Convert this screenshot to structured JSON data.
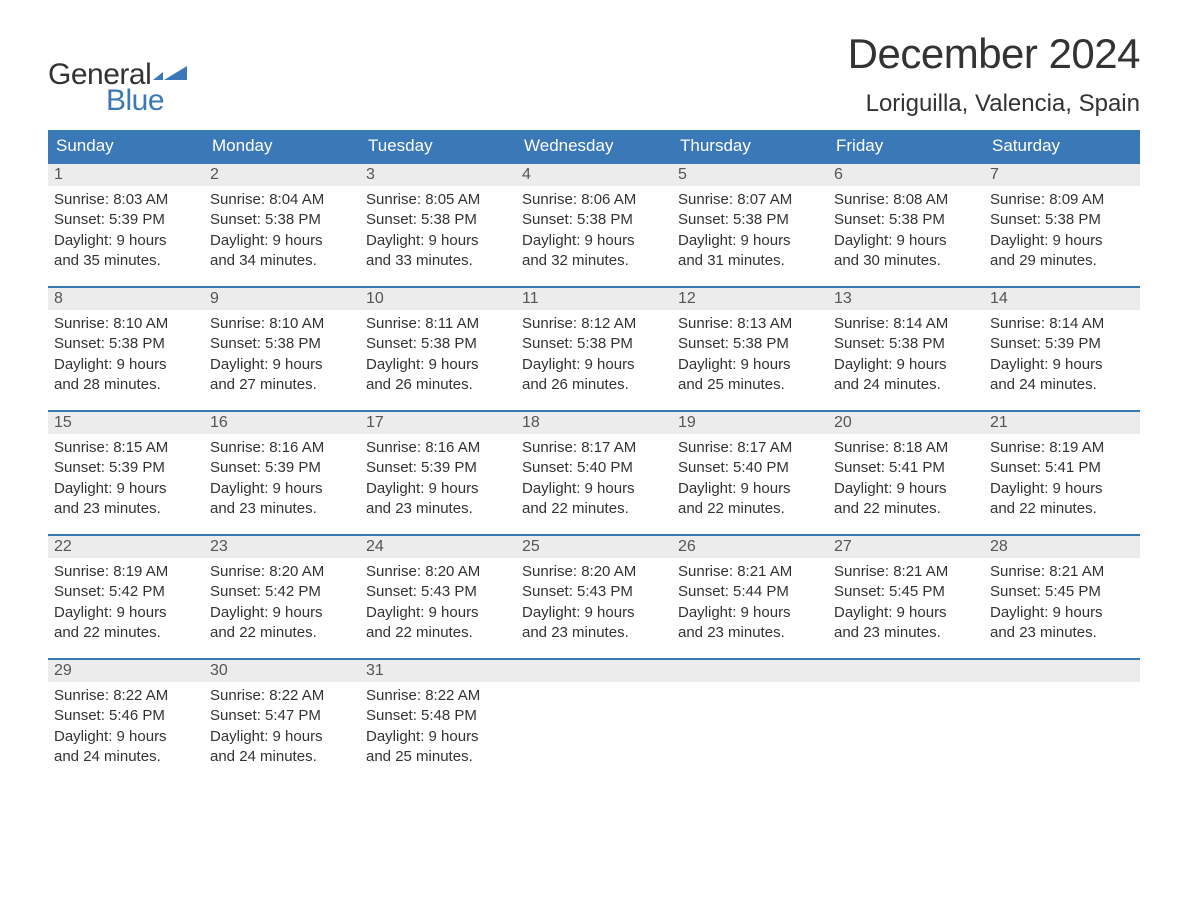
{
  "logo": {
    "text_general": "General",
    "text_blue": "Blue",
    "flag_color": "#3a78b7"
  },
  "title": {
    "month": "December 2024",
    "location": "Loriguilla, Valencia, Spain"
  },
  "colors": {
    "header_bg": "#3a78b7",
    "header_text": "#ffffff",
    "daynum_bg": "#ececec",
    "week_border": "#3a78b7",
    "body_text": "#333333",
    "brand_blue": "#3a78b7"
  },
  "typography": {
    "month_title_fontsize": 42,
    "location_fontsize": 24,
    "day_header_fontsize": 17,
    "daynum_fontsize": 16,
    "cell_fontsize": 15,
    "logo_fontsize": 30
  },
  "day_names": [
    "Sunday",
    "Monday",
    "Tuesday",
    "Wednesday",
    "Thursday",
    "Friday",
    "Saturday"
  ],
  "weeks": [
    [
      {
        "n": "1",
        "sunrise": "Sunrise: 8:03 AM",
        "sunset": "Sunset: 5:39 PM",
        "d1": "Daylight: 9 hours",
        "d2": "and 35 minutes."
      },
      {
        "n": "2",
        "sunrise": "Sunrise: 8:04 AM",
        "sunset": "Sunset: 5:38 PM",
        "d1": "Daylight: 9 hours",
        "d2": "and 34 minutes."
      },
      {
        "n": "3",
        "sunrise": "Sunrise: 8:05 AM",
        "sunset": "Sunset: 5:38 PM",
        "d1": "Daylight: 9 hours",
        "d2": "and 33 minutes."
      },
      {
        "n": "4",
        "sunrise": "Sunrise: 8:06 AM",
        "sunset": "Sunset: 5:38 PM",
        "d1": "Daylight: 9 hours",
        "d2": "and 32 minutes."
      },
      {
        "n": "5",
        "sunrise": "Sunrise: 8:07 AM",
        "sunset": "Sunset: 5:38 PM",
        "d1": "Daylight: 9 hours",
        "d2": "and 31 minutes."
      },
      {
        "n": "6",
        "sunrise": "Sunrise: 8:08 AM",
        "sunset": "Sunset: 5:38 PM",
        "d1": "Daylight: 9 hours",
        "d2": "and 30 minutes."
      },
      {
        "n": "7",
        "sunrise": "Sunrise: 8:09 AM",
        "sunset": "Sunset: 5:38 PM",
        "d1": "Daylight: 9 hours",
        "d2": "and 29 minutes."
      }
    ],
    [
      {
        "n": "8",
        "sunrise": "Sunrise: 8:10 AM",
        "sunset": "Sunset: 5:38 PM",
        "d1": "Daylight: 9 hours",
        "d2": "and 28 minutes."
      },
      {
        "n": "9",
        "sunrise": "Sunrise: 8:10 AM",
        "sunset": "Sunset: 5:38 PM",
        "d1": "Daylight: 9 hours",
        "d2": "and 27 minutes."
      },
      {
        "n": "10",
        "sunrise": "Sunrise: 8:11 AM",
        "sunset": "Sunset: 5:38 PM",
        "d1": "Daylight: 9 hours",
        "d2": "and 26 minutes."
      },
      {
        "n": "11",
        "sunrise": "Sunrise: 8:12 AM",
        "sunset": "Sunset: 5:38 PM",
        "d1": "Daylight: 9 hours",
        "d2": "and 26 minutes."
      },
      {
        "n": "12",
        "sunrise": "Sunrise: 8:13 AM",
        "sunset": "Sunset: 5:38 PM",
        "d1": "Daylight: 9 hours",
        "d2": "and 25 minutes."
      },
      {
        "n": "13",
        "sunrise": "Sunrise: 8:14 AM",
        "sunset": "Sunset: 5:38 PM",
        "d1": "Daylight: 9 hours",
        "d2": "and 24 minutes."
      },
      {
        "n": "14",
        "sunrise": "Sunrise: 8:14 AM",
        "sunset": "Sunset: 5:39 PM",
        "d1": "Daylight: 9 hours",
        "d2": "and 24 minutes."
      }
    ],
    [
      {
        "n": "15",
        "sunrise": "Sunrise: 8:15 AM",
        "sunset": "Sunset: 5:39 PM",
        "d1": "Daylight: 9 hours",
        "d2": "and 23 minutes."
      },
      {
        "n": "16",
        "sunrise": "Sunrise: 8:16 AM",
        "sunset": "Sunset: 5:39 PM",
        "d1": "Daylight: 9 hours",
        "d2": "and 23 minutes."
      },
      {
        "n": "17",
        "sunrise": "Sunrise: 8:16 AM",
        "sunset": "Sunset: 5:39 PM",
        "d1": "Daylight: 9 hours",
        "d2": "and 23 minutes."
      },
      {
        "n": "18",
        "sunrise": "Sunrise: 8:17 AM",
        "sunset": "Sunset: 5:40 PM",
        "d1": "Daylight: 9 hours",
        "d2": "and 22 minutes."
      },
      {
        "n": "19",
        "sunrise": "Sunrise: 8:17 AM",
        "sunset": "Sunset: 5:40 PM",
        "d1": "Daylight: 9 hours",
        "d2": "and 22 minutes."
      },
      {
        "n": "20",
        "sunrise": "Sunrise: 8:18 AM",
        "sunset": "Sunset: 5:41 PM",
        "d1": "Daylight: 9 hours",
        "d2": "and 22 minutes."
      },
      {
        "n": "21",
        "sunrise": "Sunrise: 8:19 AM",
        "sunset": "Sunset: 5:41 PM",
        "d1": "Daylight: 9 hours",
        "d2": "and 22 minutes."
      }
    ],
    [
      {
        "n": "22",
        "sunrise": "Sunrise: 8:19 AM",
        "sunset": "Sunset: 5:42 PM",
        "d1": "Daylight: 9 hours",
        "d2": "and 22 minutes."
      },
      {
        "n": "23",
        "sunrise": "Sunrise: 8:20 AM",
        "sunset": "Sunset: 5:42 PM",
        "d1": "Daylight: 9 hours",
        "d2": "and 22 minutes."
      },
      {
        "n": "24",
        "sunrise": "Sunrise: 8:20 AM",
        "sunset": "Sunset: 5:43 PM",
        "d1": "Daylight: 9 hours",
        "d2": "and 22 minutes."
      },
      {
        "n": "25",
        "sunrise": "Sunrise: 8:20 AM",
        "sunset": "Sunset: 5:43 PM",
        "d1": "Daylight: 9 hours",
        "d2": "and 23 minutes."
      },
      {
        "n": "26",
        "sunrise": "Sunrise: 8:21 AM",
        "sunset": "Sunset: 5:44 PM",
        "d1": "Daylight: 9 hours",
        "d2": "and 23 minutes."
      },
      {
        "n": "27",
        "sunrise": "Sunrise: 8:21 AM",
        "sunset": "Sunset: 5:45 PM",
        "d1": "Daylight: 9 hours",
        "d2": "and 23 minutes."
      },
      {
        "n": "28",
        "sunrise": "Sunrise: 8:21 AM",
        "sunset": "Sunset: 5:45 PM",
        "d1": "Daylight: 9 hours",
        "d2": "and 23 minutes."
      }
    ],
    [
      {
        "n": "29",
        "sunrise": "Sunrise: 8:22 AM",
        "sunset": "Sunset: 5:46 PM",
        "d1": "Daylight: 9 hours",
        "d2": "and 24 minutes."
      },
      {
        "n": "30",
        "sunrise": "Sunrise: 8:22 AM",
        "sunset": "Sunset: 5:47 PM",
        "d1": "Daylight: 9 hours",
        "d2": "and 24 minutes."
      },
      {
        "n": "31",
        "sunrise": "Sunrise: 8:22 AM",
        "sunset": "Sunset: 5:48 PM",
        "d1": "Daylight: 9 hours",
        "d2": "and 25 minutes."
      },
      {
        "empty": true
      },
      {
        "empty": true
      },
      {
        "empty": true
      },
      {
        "empty": true
      }
    ]
  ]
}
